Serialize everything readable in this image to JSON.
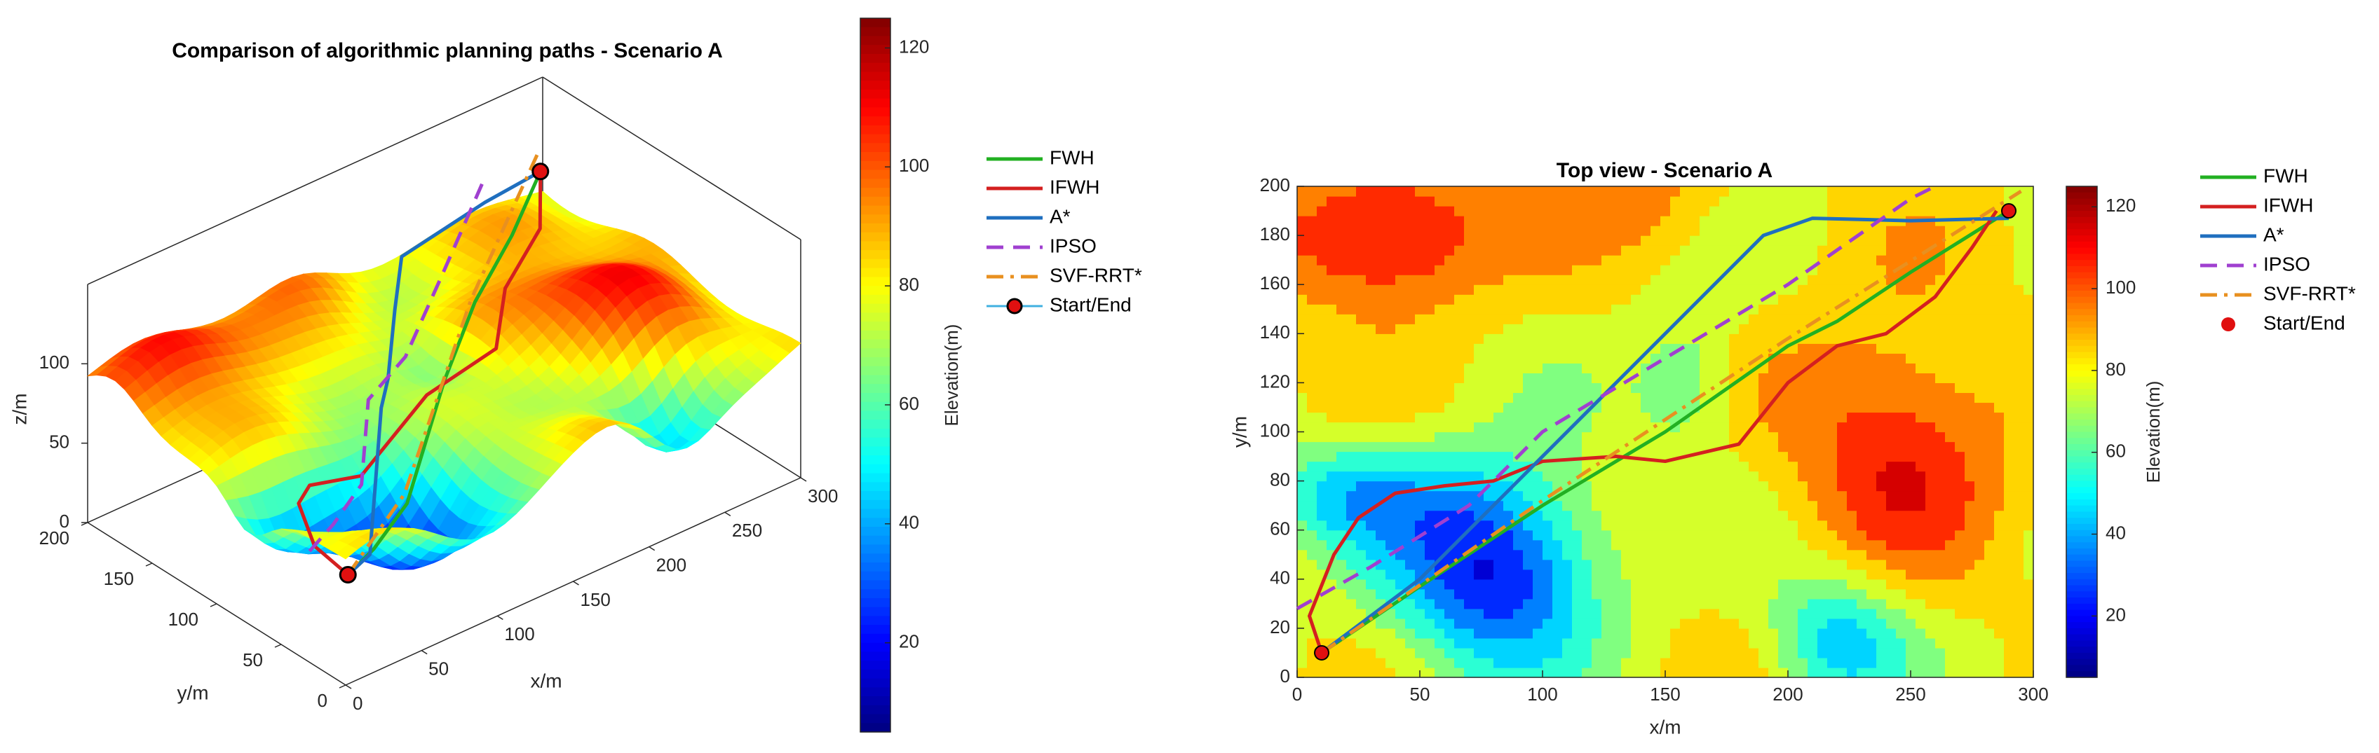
{
  "chart_data": [
    {
      "type": "surface3d",
      "title": "Comparison of algorithmic planning paths - Scenario A",
      "xlabel": "x/m",
      "ylabel": "y/m",
      "zlabel": "z/m",
      "xlim": [
        0,
        300
      ],
      "xticks": [
        0,
        50,
        100,
        150,
        200,
        250,
        300
      ],
      "ylim": [
        0,
        200
      ],
      "yticks": [
        0,
        50,
        100,
        150,
        200
      ],
      "zlim": [
        0,
        150
      ],
      "zticks": [
        0,
        50,
        100
      ],
      "colorbar": {
        "label": "Elevation(m)",
        "lim": [
          5,
          125
        ],
        "ticks": [
          20,
          40,
          60,
          80,
          100,
          120
        ]
      },
      "series": [
        {
          "name": "FWH",
          "color": "#22b022",
          "dash": "solid",
          "x": [
            10,
            50,
            100,
            150,
            200,
            250,
            290
          ],
          "y": [
            10,
            37,
            70,
            100,
            135,
            165,
            190
          ],
          "z": [
            60,
            45,
            35,
            75,
            85,
            90,
            100
          ]
        },
        {
          "name": "IFWH",
          "color": "#d42020",
          "dash": "solid",
          "x": [
            10,
            5,
            20,
            40,
            80,
            130,
            180,
            220,
            260,
            290
          ],
          "y": [
            10,
            30,
            60,
            75,
            82,
            90,
            95,
            135,
            155,
            190
          ],
          "z": [
            60,
            70,
            75,
            70,
            55,
            80,
            85,
            85,
            95,
            100
          ]
        },
        {
          "name": "A*",
          "color": "#1f6fbf",
          "dash": "solid",
          "x": [
            10,
            50,
            100,
            130,
            160,
            190,
            250,
            290
          ],
          "y": [
            10,
            40,
            90,
            120,
            150,
            180,
            186,
            190
          ],
          "z": [
            60,
            40,
            85,
            75,
            90,
            95,
            100,
            100
          ]
        },
        {
          "name": "IPSO",
          "color": "#a040d0",
          "dash": "dashed",
          "x": [
            0,
            30,
            70,
            100,
            150,
            200,
            260
          ],
          "y": [
            28,
            45,
            70,
            100,
            130,
            160,
            200
          ],
          "z": [
            70,
            65,
            60,
            85,
            75,
            90,
            100
          ]
        },
        {
          "name": "SVF-RRT*",
          "color": "#e89020",
          "dash": "dashdot",
          "x": [
            10,
            100,
            200,
            295
          ],
          "y": [
            10,
            72,
            138,
            198
          ],
          "z": [
            60,
            40,
            85,
            105
          ]
        }
      ],
      "markers": {
        "name": "Start/End",
        "color": "#e01010",
        "line_color": "#40b0e0",
        "x": [
          10,
          290
        ],
        "y": [
          10,
          190
        ],
        "z": [
          60,
          100
        ]
      }
    },
    {
      "type": "contour",
      "title": "Top view - Scenario A",
      "xlabel": "x/m",
      "ylabel": "y/m",
      "xlim": [
        0,
        300
      ],
      "xticks": [
        0,
        50,
        100,
        150,
        200,
        250,
        300
      ],
      "ylim": [
        0,
        200
      ],
      "yticks": [
        0,
        20,
        40,
        60,
        80,
        100,
        120,
        140,
        160,
        180,
        200
      ],
      "colorbar": {
        "label": "Elevation(m)",
        "lim": [
          5,
          125
        ],
        "ticks": [
          20,
          40,
          60,
          80,
          100,
          120
        ]
      },
      "series": [
        {
          "name": "FWH",
          "color": "#22b022",
          "dash": "solid",
          "x": [
            10,
            50,
            100,
            150,
            200,
            220,
            250,
            290
          ],
          "y": [
            10,
            37,
            70,
            100,
            135,
            145,
            165,
            190
          ]
        },
        {
          "name": "IFWH",
          "color": "#d42020",
          "dash": "solid",
          "x": [
            10,
            5,
            15,
            25,
            40,
            60,
            80,
            100,
            130,
            150,
            180,
            200,
            220,
            240,
            260,
            275,
            285
          ],
          "y": [
            10,
            25,
            50,
            65,
            75,
            78,
            80,
            88,
            90,
            88,
            95,
            120,
            135,
            140,
            155,
            175,
            190
          ]
        },
        {
          "name": "A*",
          "color": "#1f6fbf",
          "dash": "solid",
          "x": [
            10,
            50,
            75,
            100,
            130,
            160,
            190,
            210,
            250,
            290
          ],
          "y": [
            10,
            40,
            65,
            90,
            120,
            150,
            180,
            187,
            186,
            187
          ]
        },
        {
          "name": "IPSO",
          "color": "#a040d0",
          "dash": "dashed",
          "x": [
            0,
            30,
            70,
            100,
            150,
            200,
            250,
            260
          ],
          "y": [
            28,
            45,
            70,
            100,
            130,
            160,
            195,
            200
          ]
        },
        {
          "name": "SVF-RRT*",
          "color": "#e89020",
          "dash": "dashdot",
          "x": [
            10,
            100,
            200,
            295
          ],
          "y": [
            10,
            72,
            138,
            198
          ]
        }
      ],
      "markers": {
        "name": "Start/End",
        "color": "#e01010",
        "x": [
          10,
          290
        ],
        "y": [
          10,
          190
        ]
      }
    }
  ]
}
